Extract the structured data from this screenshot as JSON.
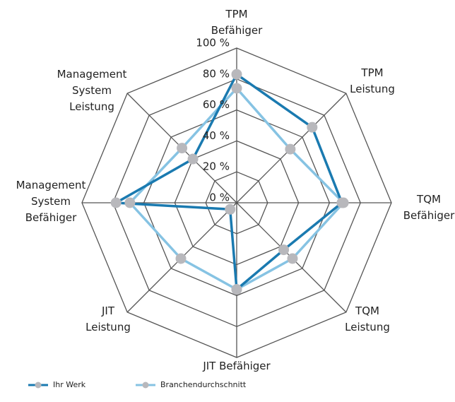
{
  "chart_data": {
    "type": "radar",
    "categories": [
      "TPM\nBefähiger",
      "TPM\nLeistung",
      "TQM\nBefähiger",
      "TQM\nLeistung",
      "JIT Befähiger",
      "JIT\nLeistung",
      "Management\nSystem\nBefähiger",
      "Management\nSystem\nLeistung"
    ],
    "series": [
      {
        "name": "Ihr Werk",
        "color": "#1a7ab0",
        "values": [
          83,
          69,
          68,
          43,
          56,
          6,
          78,
          40
        ]
      },
      {
        "name": "Branchendurchschnitt",
        "color": "#86c3e3",
        "values": [
          74,
          49,
          69,
          51,
          56,
          51,
          69,
          50
        ]
      }
    ],
    "ylim": [
      0,
      100
    ],
    "yticks": [
      {
        "value": 0,
        "label": "0 %"
      },
      {
        "value": 20,
        "label": "20 %"
      },
      {
        "value": 40,
        "label": "40 %"
      },
      {
        "value": 60,
        "label": "60 %"
      },
      {
        "value": 80,
        "label": "80 %"
      },
      {
        "value": 100,
        "label": "100 %"
      }
    ],
    "grid": true,
    "legend": "bottom",
    "marker_color": "#b8b8bc"
  }
}
